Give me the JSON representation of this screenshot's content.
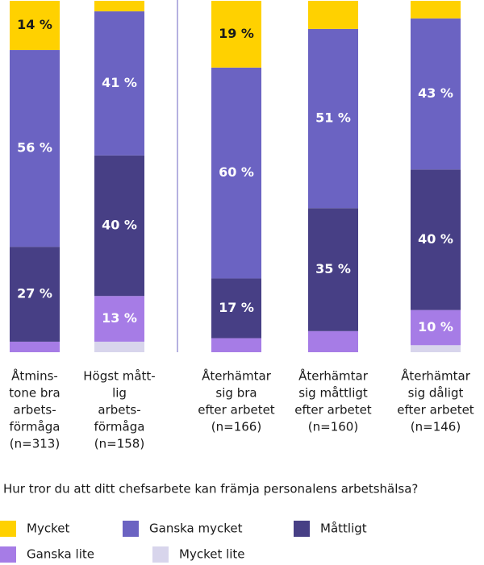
{
  "chart_data": {
    "type": "stacked_bar",
    "categories": [
      [
        "Åtmins-",
        "tone bra",
        "arbets-",
        "förmåga",
        "(n=313)"
      ],
      [
        "Högst mått-",
        "lig",
        "arbets-",
        "förmåga",
        "(n=158)"
      ],
      [
        "Återhämtar",
        "sig bra",
        "efter arbetet",
        "(n=166)"
      ],
      [
        "Återhämtar",
        "sig måttligt",
        "efter arbetet",
        "(n=160)"
      ],
      [
        "Återhämtar",
        "sig dåligt",
        "efter arbetet",
        "(n=146)"
      ]
    ],
    "question": "Hur tror du att ditt chefsarbete kan främja personalens arbetshälsa?",
    "ylim": [
      0,
      100
    ],
    "series": [
      {
        "name": "Mycket lite",
        "color": "#d8d5ec",
        "label_color": "#ffffff",
        "values": [
          0,
          3,
          0,
          0,
          2
        ],
        "value_labels": [
          null,
          null,
          null,
          null,
          null
        ]
      },
      {
        "name": "Ganska lite",
        "color": "#a67ce6",
        "label_color": "#ffffff",
        "values": [
          3,
          13,
          4,
          6,
          10
        ],
        "value_labels": [
          null,
          "13 %",
          null,
          null,
          "10 %"
        ]
      },
      {
        "name": "Måttligt",
        "color": "#473f85",
        "label_color": "#ffffff",
        "values": [
          27,
          40,
          17,
          35,
          40
        ],
        "value_labels": [
          "27 %",
          "40 %",
          "17 %",
          "35 %",
          "40 %"
        ]
      },
      {
        "name": "Ganska mycket",
        "color": "#6b63c2",
        "label_color": "#ffffff",
        "values": [
          56,
          41,
          60,
          51,
          43
        ],
        "value_labels": [
          "56 %",
          "41 %",
          "60 %",
          "51 %",
          "43 %"
        ]
      },
      {
        "name": "Mycket",
        "color": "#ffd100",
        "label_color": "#1a1a1a",
        "values": [
          14,
          3,
          19,
          8,
          5
        ],
        "value_labels": [
          "14 %",
          null,
          "19 %",
          null,
          null
        ]
      }
    ]
  }
}
